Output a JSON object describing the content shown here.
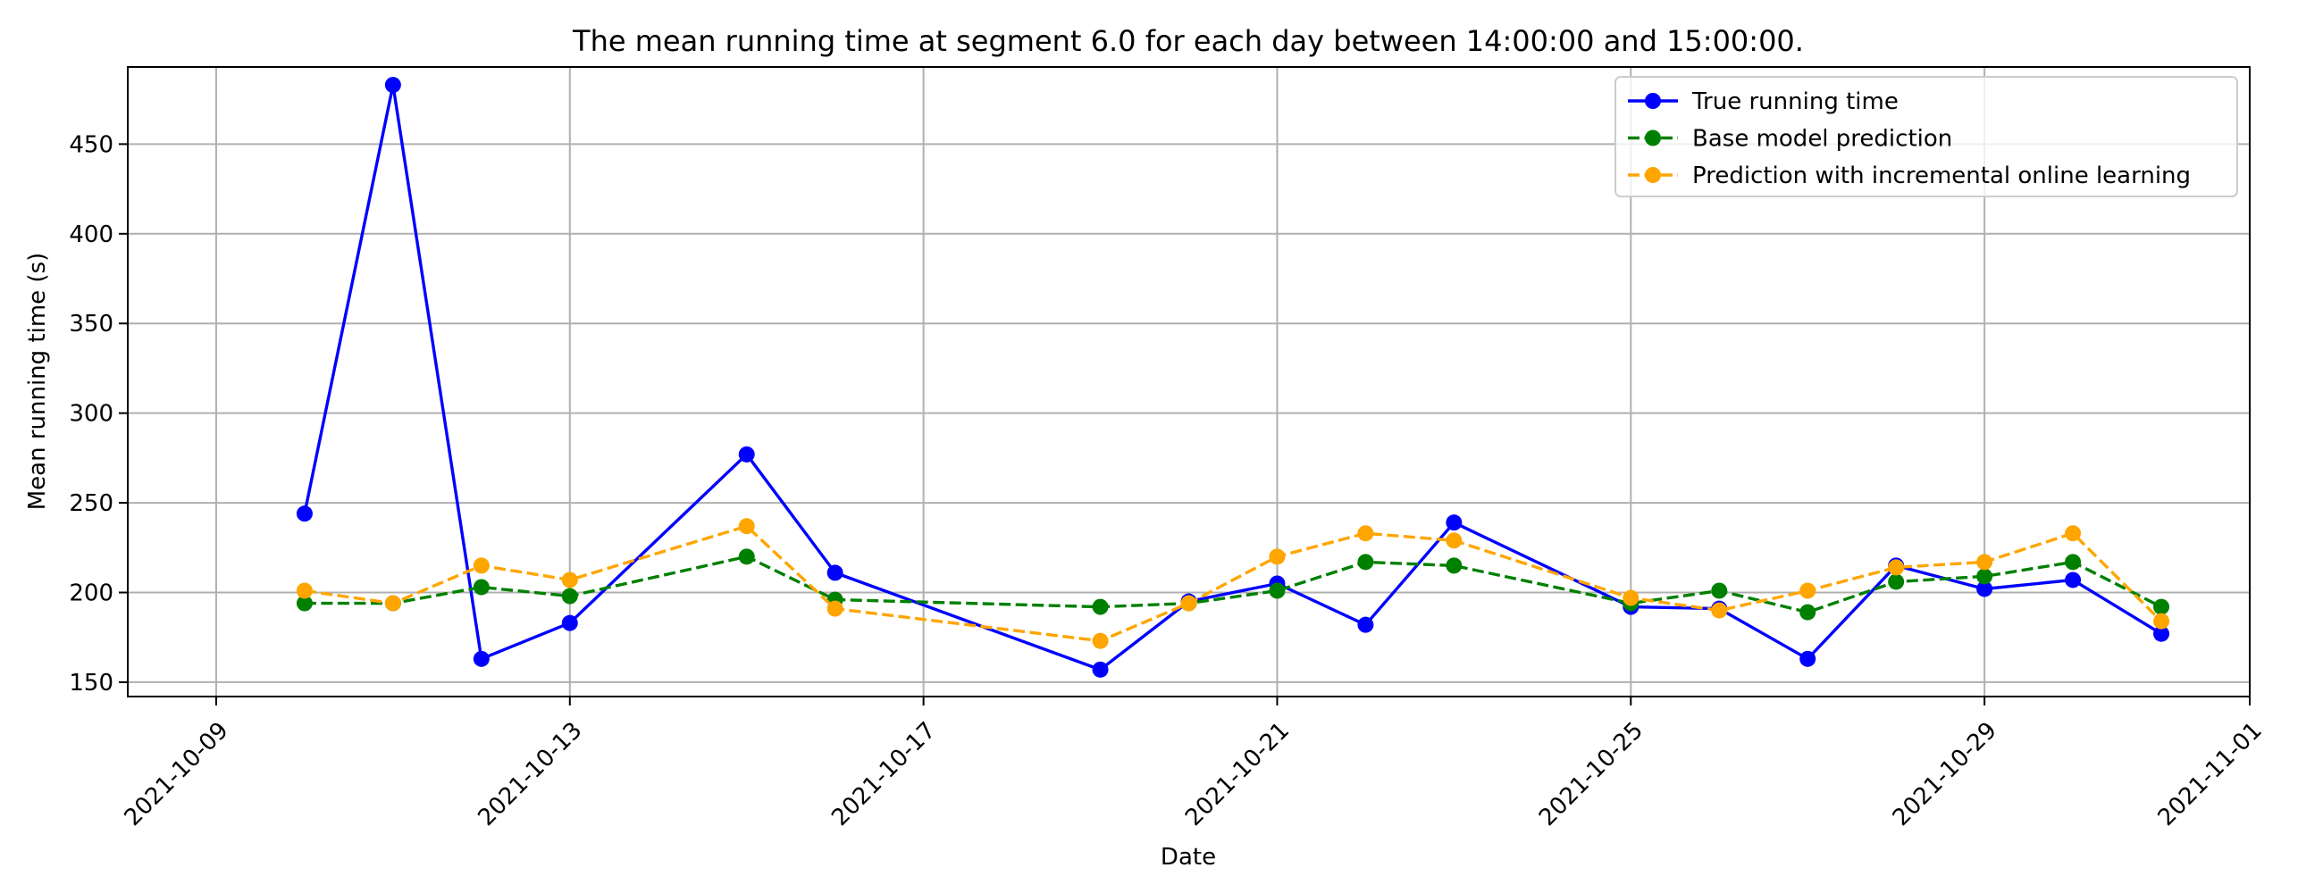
{
  "chart_data": {
    "type": "line",
    "title": "The mean running time at segment 6.0 for each day between 14:00:00 and 15:00:00.",
    "xlabel": "Date",
    "ylabel": "Mean running time (s)",
    "x_ticks": [
      "2021-10-09",
      "2021-10-13",
      "2021-10-17",
      "2021-10-21",
      "2021-10-25",
      "2021-10-29",
      "2021-11-01"
    ],
    "y_ticks": [
      150,
      200,
      250,
      300,
      350,
      400,
      450
    ],
    "xlim": [
      "2021-10-08",
      "2021-11-01"
    ],
    "ylim": [
      142,
      493
    ],
    "grid": true,
    "legend_position": "top-right",
    "series": [
      {
        "name": "True running time",
        "color": "#0000ff",
        "style": "solid",
        "marker": "circle",
        "points": [
          [
            "2021-10-10",
            244
          ],
          [
            "2021-10-11",
            483
          ],
          [
            "2021-10-12",
            163
          ],
          [
            "2021-10-13",
            183
          ],
          [
            "2021-10-15",
            277
          ],
          [
            "2021-10-16",
            211
          ],
          [
            "2021-10-19",
            157
          ],
          [
            "2021-10-20",
            195
          ],
          [
            "2021-10-21",
            205
          ],
          [
            "2021-10-22",
            182
          ],
          [
            "2021-10-23",
            239
          ],
          [
            "2021-10-25",
            192
          ],
          [
            "2021-10-26",
            191
          ],
          [
            "2021-10-27",
            163
          ],
          [
            "2021-10-28",
            215
          ],
          [
            "2021-10-29",
            202
          ],
          [
            "2021-10-30",
            207
          ],
          [
            "2021-10-31",
            177
          ]
        ]
      },
      {
        "name": "Base model prediction",
        "color": "#008000",
        "style": "dashed",
        "marker": "circle",
        "points": [
          [
            "2021-10-10",
            194
          ],
          [
            "2021-10-11",
            194
          ],
          [
            "2021-10-12",
            203
          ],
          [
            "2021-10-13",
            198
          ],
          [
            "2021-10-15",
            220
          ],
          [
            "2021-10-16",
            196
          ],
          [
            "2021-10-19",
            192
          ],
          [
            "2021-10-20",
            194
          ],
          [
            "2021-10-21",
            201
          ],
          [
            "2021-10-22",
            217
          ],
          [
            "2021-10-23",
            215
          ],
          [
            "2021-10-25",
            194
          ],
          [
            "2021-10-26",
            201
          ],
          [
            "2021-10-27",
            189
          ],
          [
            "2021-10-28",
            206
          ],
          [
            "2021-10-29",
            209
          ],
          [
            "2021-10-30",
            217
          ],
          [
            "2021-10-31",
            192
          ]
        ]
      },
      {
        "name": "Prediction with incremental online learning",
        "color": "#ffa500",
        "style": "dashed",
        "marker": "circle",
        "points": [
          [
            "2021-10-10",
            201
          ],
          [
            "2021-10-11",
            194
          ],
          [
            "2021-10-12",
            215
          ],
          [
            "2021-10-13",
            207
          ],
          [
            "2021-10-15",
            237
          ],
          [
            "2021-10-16",
            191
          ],
          [
            "2021-10-19",
            173
          ],
          [
            "2021-10-20",
            194
          ],
          [
            "2021-10-21",
            220
          ],
          [
            "2021-10-22",
            233
          ],
          [
            "2021-10-23",
            229
          ],
          [
            "2021-10-25",
            197
          ],
          [
            "2021-10-26",
            190
          ],
          [
            "2021-10-27",
            201
          ],
          [
            "2021-10-28",
            214
          ],
          [
            "2021-10-29",
            217
          ],
          [
            "2021-10-30",
            233
          ],
          [
            "2021-10-31",
            184
          ]
        ]
      }
    ]
  }
}
